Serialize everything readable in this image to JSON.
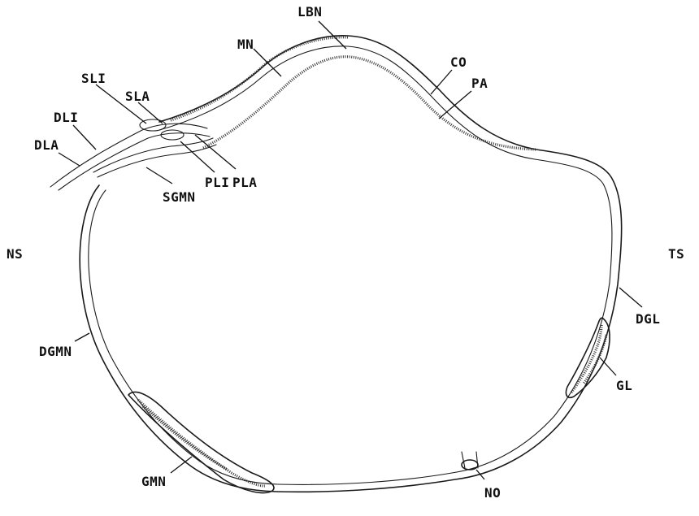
{
  "diagram": {
    "labels": {
      "lbn": "LBN",
      "mn": "MN",
      "co": "CO",
      "pa": "PA",
      "sli": "SLI",
      "sla": "SLA",
      "dli": "DLI",
      "dla": "DLA",
      "pli": "PLI",
      "pla": "PLA",
      "sgmn": "SGMN",
      "ns": "NS",
      "ts": "TS",
      "dgl": "DGL",
      "gl": "GL",
      "dgmn": "DGMN",
      "gmn": "GMN",
      "no": "NO"
    }
  }
}
